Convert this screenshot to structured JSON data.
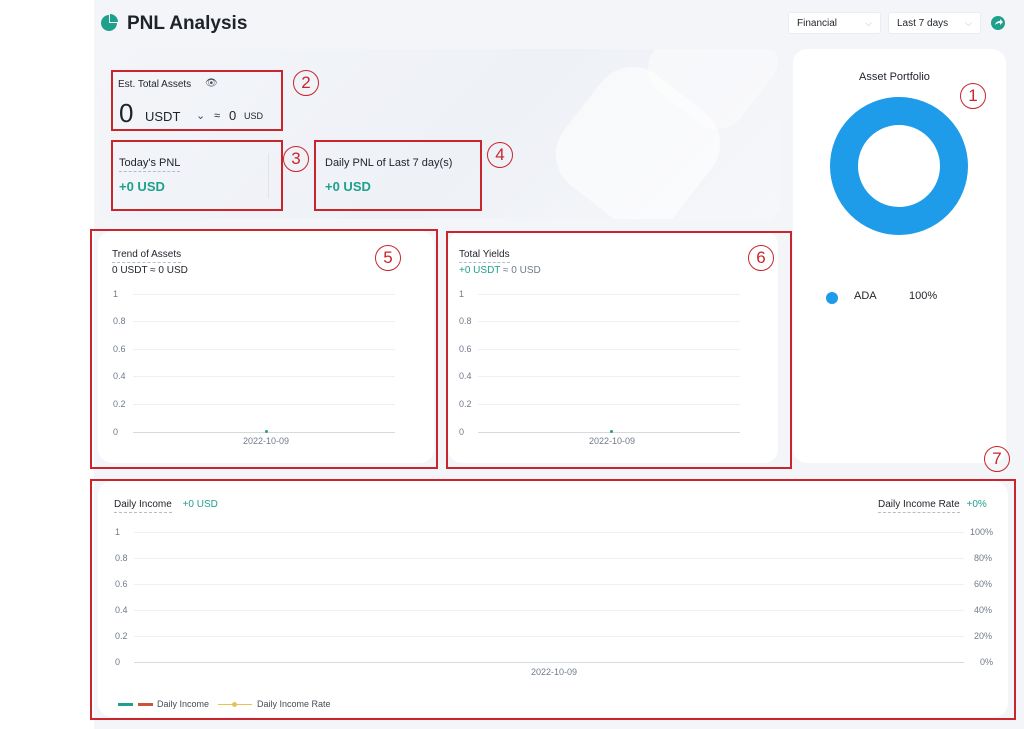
{
  "header": {
    "title": "PNL Analysis",
    "account_select": "Financial",
    "range_select": "Last 7 days"
  },
  "summary": {
    "est_total_label": "Est. Total Assets",
    "total_value": "0",
    "currency": "USDT",
    "approx": "≈",
    "usd_value": "0",
    "usd_unit": "USD",
    "today_pnl_label": "Today's PNL",
    "today_pnl_value": "+0 USD",
    "daily_pnl_label": "Daily PNL of Last 7 day(s)",
    "daily_pnl_value": "+0 USD"
  },
  "portfolio": {
    "title": "Asset Portfolio",
    "items": [
      {
        "name": "ADA",
        "pct": "100%",
        "color": "#1e9be9"
      }
    ]
  },
  "trend": {
    "title": "Trend of Assets",
    "subtitle": "0 USDT ≈ 0 USD",
    "y_ticks": [
      "1",
      "0.8",
      "0.6",
      "0.4",
      "0.2",
      "0"
    ],
    "x_label": "2022-10-09"
  },
  "yields": {
    "title": "Total Yields",
    "value": "+0 USDT",
    "approx": "≈ 0 USD",
    "y_ticks": [
      "1",
      "0.8",
      "0.6",
      "0.4",
      "0.2",
      "0"
    ],
    "x_label": "2022-10-09"
  },
  "income": {
    "title": "Daily Income",
    "value": "+0 USD",
    "rate_title": "Daily Income Rate",
    "rate_value": "+0%",
    "y_left": [
      "1",
      "0.8",
      "0.6",
      "0.4",
      "0.2",
      "0"
    ],
    "y_right": [
      "100%",
      "80%",
      "60%",
      "40%",
      "20%",
      "0%"
    ],
    "x_label": "2022-10-09",
    "legend_income": "Daily Income",
    "legend_rate": "Daily Income Rate",
    "colors": {
      "income_a": "#1fa08d",
      "income_b": "#c9553a",
      "rate": "#e7c15a"
    }
  },
  "annotations": [
    "1",
    "2",
    "3",
    "4",
    "5",
    "6",
    "7"
  ]
}
